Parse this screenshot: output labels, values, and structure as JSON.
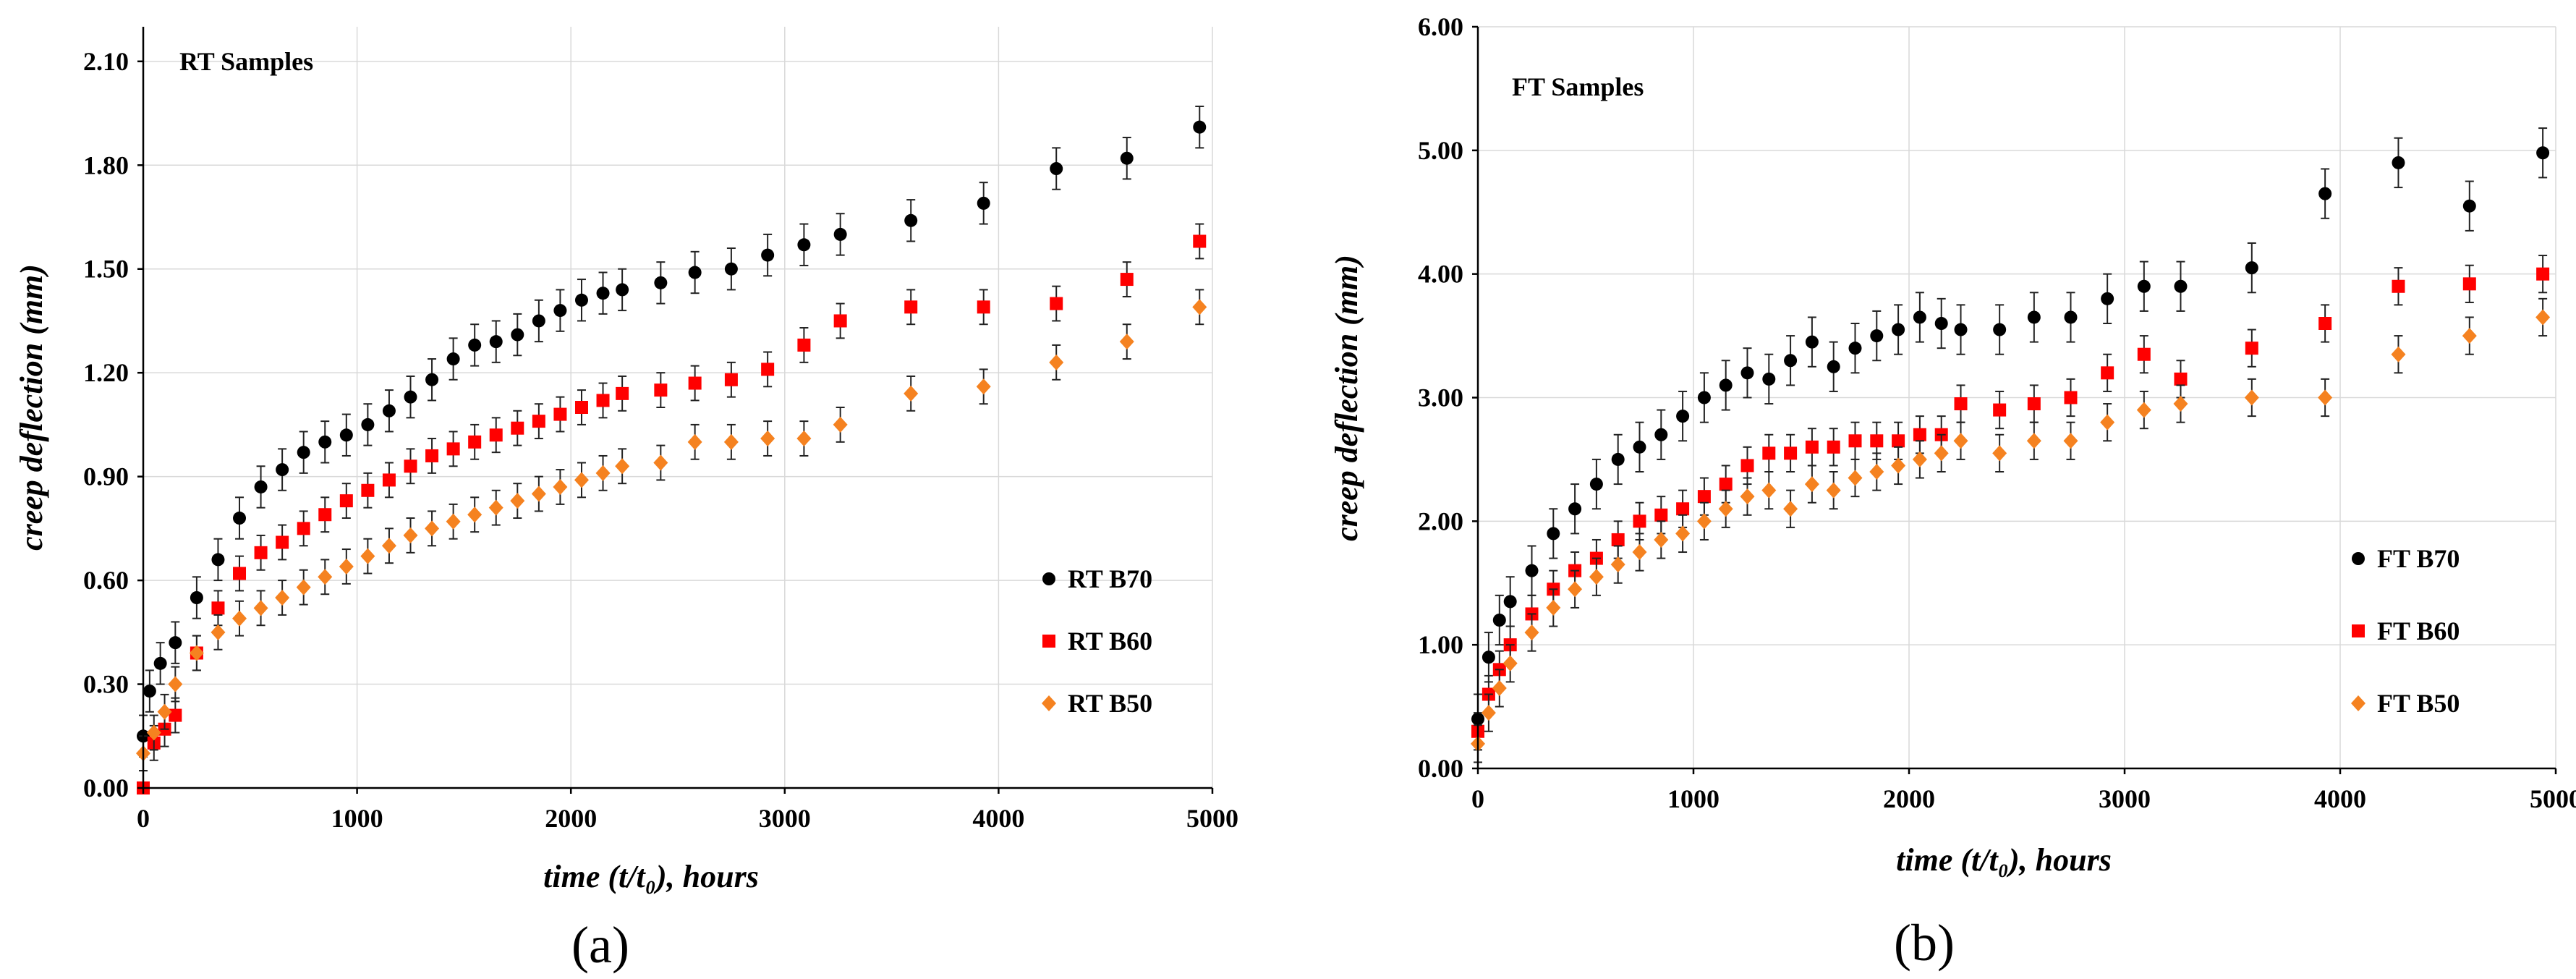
{
  "chart_data": [
    {
      "type": "scatter",
      "panel_label": "(a)",
      "title": "RT Samples",
      "xlabel": "time (t/t₀), hours",
      "ylabel": "creep deflection (mm)",
      "xlim": [
        0,
        5000
      ],
      "ylim": [
        0,
        2.2
      ],
      "x_ticks": [
        "0",
        "1000",
        "2000",
        "3000",
        "4000",
        "5000"
      ],
      "y_ticks": [
        "0.00",
        "0.30",
        "0.60",
        "0.90",
        "1.20",
        "1.50",
        "1.80",
        "2.10"
      ],
      "grid": true,
      "legend_position": "right-center",
      "series": [
        {
          "name": "RT B70",
          "color": "#000000",
          "marker": "circle",
          "x": [
            0,
            30,
            80,
            150,
            250,
            350,
            450,
            550,
            650,
            750,
            850,
            950,
            1050,
            1150,
            1250,
            1350,
            1450,
            1550,
            1650,
            1750,
            1850,
            1950,
            2050,
            2150,
            2240,
            2420,
            2580,
            2750,
            2920,
            3090,
            3260,
            3590,
            3930,
            4270,
            4600,
            4940
          ],
          "y": [
            0.15,
            0.28,
            0.36,
            0.42,
            0.55,
            0.66,
            0.78,
            0.87,
            0.92,
            0.97,
            1.0,
            1.02,
            1.05,
            1.09,
            1.13,
            1.18,
            1.24,
            1.28,
            1.29,
            1.31,
            1.35,
            1.38,
            1.41,
            1.43,
            1.44,
            1.46,
            1.49,
            1.5,
            1.54,
            1.57,
            1.6,
            1.64,
            1.69,
            1.79,
            1.82,
            1.91
          ],
          "error": 0.06
        },
        {
          "name": "RT B60",
          "color": "#ff0000",
          "marker": "square",
          "x": [
            0,
            50,
            100,
            150,
            250,
            350,
            450,
            550,
            650,
            750,
            850,
            950,
            1050,
            1150,
            1250,
            1350,
            1450,
            1550,
            1650,
            1750,
            1850,
            1950,
            2050,
            2150,
            2240,
            2420,
            2580,
            2750,
            2920,
            3090,
            3260,
            3590,
            3930,
            4270,
            4600,
            4940
          ],
          "y": [
            0.0,
            0.13,
            0.17,
            0.21,
            0.39,
            0.52,
            0.62,
            0.68,
            0.71,
            0.75,
            0.79,
            0.83,
            0.86,
            0.89,
            0.93,
            0.96,
            0.98,
            1.0,
            1.02,
            1.04,
            1.06,
            1.08,
            1.1,
            1.12,
            1.14,
            1.15,
            1.17,
            1.18,
            1.21,
            1.28,
            1.35,
            1.39,
            1.39,
            1.4,
            1.47,
            1.58
          ],
          "error": 0.05
        },
        {
          "name": "RT B50",
          "color": "#f58220",
          "marker": "diamond",
          "x": [
            0,
            50,
            100,
            150,
            250,
            350,
            450,
            550,
            650,
            750,
            850,
            950,
            1050,
            1150,
            1250,
            1350,
            1450,
            1550,
            1650,
            1750,
            1850,
            1950,
            2050,
            2150,
            2240,
            2420,
            2580,
            2750,
            2920,
            3090,
            3260,
            3590,
            3930,
            4270,
            4600,
            4940
          ],
          "y": [
            0.1,
            0.16,
            0.22,
            0.3,
            0.39,
            0.45,
            0.49,
            0.52,
            0.55,
            0.58,
            0.61,
            0.64,
            0.67,
            0.7,
            0.73,
            0.75,
            0.77,
            0.79,
            0.81,
            0.83,
            0.85,
            0.87,
            0.89,
            0.91,
            0.93,
            0.94,
            1.0,
            1.0,
            1.01,
            1.01,
            1.05,
            1.14,
            1.16,
            1.23,
            1.29,
            1.39
          ],
          "error": 0.05
        }
      ]
    },
    {
      "type": "scatter",
      "panel_label": "(b)",
      "title": "FT Samples",
      "xlabel": "time (t/t₀), hours",
      "ylabel": "creep deflection (mm)",
      "xlim": [
        0,
        5000
      ],
      "ylim": [
        0,
        6
      ],
      "x_ticks": [
        "0",
        "1000",
        "2000",
        "3000",
        "4000",
        "5000"
      ],
      "y_ticks": [
        "0.00",
        "1.00",
        "2.00",
        "3.00",
        "4.00",
        "5.00",
        "6.00"
      ],
      "grid": true,
      "legend_position": "right-center",
      "series": [
        {
          "name": "FT B70",
          "color": "#000000",
          "marker": "circle",
          "x": [
            0,
            50,
            100,
            150,
            250,
            350,
            450,
            550,
            650,
            750,
            850,
            950,
            1050,
            1150,
            1250,
            1350,
            1450,
            1550,
            1650,
            1750,
            1850,
            1950,
            2050,
            2150,
            2240,
            2420,
            2580,
            2750,
            2920,
            3090,
            3260,
            3590,
            3930,
            4270,
            4600,
            4940
          ],
          "y": [
            0.4,
            0.9,
            1.2,
            1.35,
            1.6,
            1.9,
            2.1,
            2.3,
            2.5,
            2.6,
            2.7,
            2.85,
            3.0,
            3.1,
            3.2,
            3.15,
            3.3,
            3.45,
            3.25,
            3.4,
            3.5,
            3.55,
            3.65,
            3.6,
            3.55,
            3.55,
            3.65,
            3.65,
            3.8,
            3.9,
            3.9,
            4.05,
            4.65,
            4.9,
            4.55,
            4.98
          ],
          "error": 0.2
        },
        {
          "name": "FT B60",
          "color": "#ff0000",
          "marker": "square",
          "x": [
            0,
            50,
            100,
            150,
            250,
            350,
            450,
            550,
            650,
            750,
            850,
            950,
            1050,
            1150,
            1250,
            1350,
            1450,
            1550,
            1650,
            1750,
            1850,
            1950,
            2050,
            2150,
            2240,
            2420,
            2580,
            2750,
            2920,
            3090,
            3260,
            3590,
            3930,
            4270,
            4600,
            4940
          ],
          "y": [
            0.3,
            0.6,
            0.8,
            1.0,
            1.25,
            1.45,
            1.6,
            1.7,
            1.85,
            2.0,
            2.05,
            2.1,
            2.2,
            2.3,
            2.45,
            2.55,
            2.55,
            2.6,
            2.6,
            2.65,
            2.65,
            2.65,
            2.7,
            2.7,
            2.95,
            2.9,
            2.95,
            3.0,
            3.2,
            3.35,
            3.15,
            3.4,
            3.6,
            3.9,
            3.92,
            4.0
          ],
          "error": 0.15
        },
        {
          "name": "FT B50",
          "color": "#f58220",
          "marker": "diamond",
          "x": [
            0,
            50,
            100,
            150,
            250,
            350,
            450,
            550,
            650,
            750,
            850,
            950,
            1050,
            1150,
            1250,
            1350,
            1450,
            1550,
            1650,
            1750,
            1850,
            1950,
            2050,
            2150,
            2240,
            2420,
            2580,
            2750,
            2920,
            3090,
            3260,
            3590,
            3930,
            4270,
            4600,
            4940
          ],
          "y": [
            0.2,
            0.45,
            0.65,
            0.85,
            1.1,
            1.3,
            1.45,
            1.55,
            1.65,
            1.75,
            1.85,
            1.9,
            2.0,
            2.1,
            2.2,
            2.25,
            2.1,
            2.3,
            2.25,
            2.35,
            2.4,
            2.45,
            2.5,
            2.55,
            2.65,
            2.55,
            2.65,
            2.65,
            2.8,
            2.9,
            2.95,
            3.0,
            3.0,
            3.35,
            3.5,
            3.65
          ],
          "error": 0.15
        }
      ]
    }
  ]
}
